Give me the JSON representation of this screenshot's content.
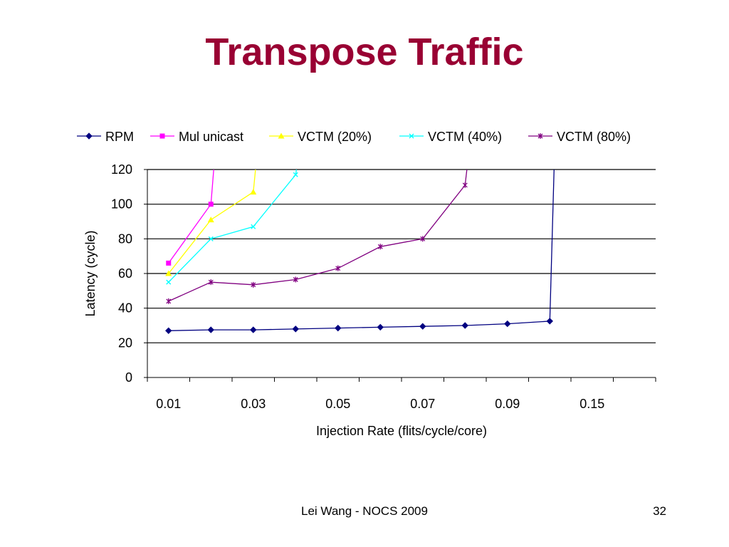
{
  "slide": {
    "title": "Transpose Traffic",
    "footer": "Lei Wang - NOCS 2009",
    "page_number": "32"
  },
  "chart_data": {
    "type": "line",
    "title": "",
    "xlabel": "Injection Rate (flits/cycle/core)",
    "ylabel": "Latency (cycle)",
    "ylim": [
      0,
      120
    ],
    "yticks": [
      0,
      20,
      40,
      60,
      80,
      100,
      120
    ],
    "x_categories": [
      "0.01",
      "0.02",
      "0.03",
      "0.04",
      "0.05",
      "0.06",
      "0.07",
      "0.08",
      "0.09",
      "0.1",
      "0.15",
      "0.2"
    ],
    "x_tick_labels_shown": [
      "0.01",
      "0.03",
      "0.05",
      "0.07",
      "0.09",
      "0.15"
    ],
    "grid": "horizontal",
    "legend_position": "top",
    "series": [
      {
        "name": "RPM",
        "color": "#000080",
        "marker": "diamond",
        "values": [
          27,
          27.5,
          27.5,
          28,
          28.5,
          29,
          29.5,
          30,
          31,
          32.5
        ],
        "continues_off_chart": true
      },
      {
        "name": "Mul unicast",
        "color": "#FF00FF",
        "marker": "square",
        "values": [
          66,
          100
        ],
        "continues_off_chart": true
      },
      {
        "name": "VCTM (20%)",
        "color": "#FFFF00",
        "marker": "triangle",
        "values": [
          60,
          91,
          107
        ],
        "continues_off_chart": true
      },
      {
        "name": "VCTM (40%)",
        "color": "#00FFFF",
        "marker": "x",
        "values": [
          55,
          80,
          87,
          117
        ],
        "continues_off_chart": true
      },
      {
        "name": "VCTM (80%)",
        "color": "#800080",
        "marker": "star",
        "values": [
          44,
          55,
          53.5,
          56.5,
          63,
          75.5,
          80,
          111
        ],
        "continues_off_chart": true
      }
    ]
  }
}
